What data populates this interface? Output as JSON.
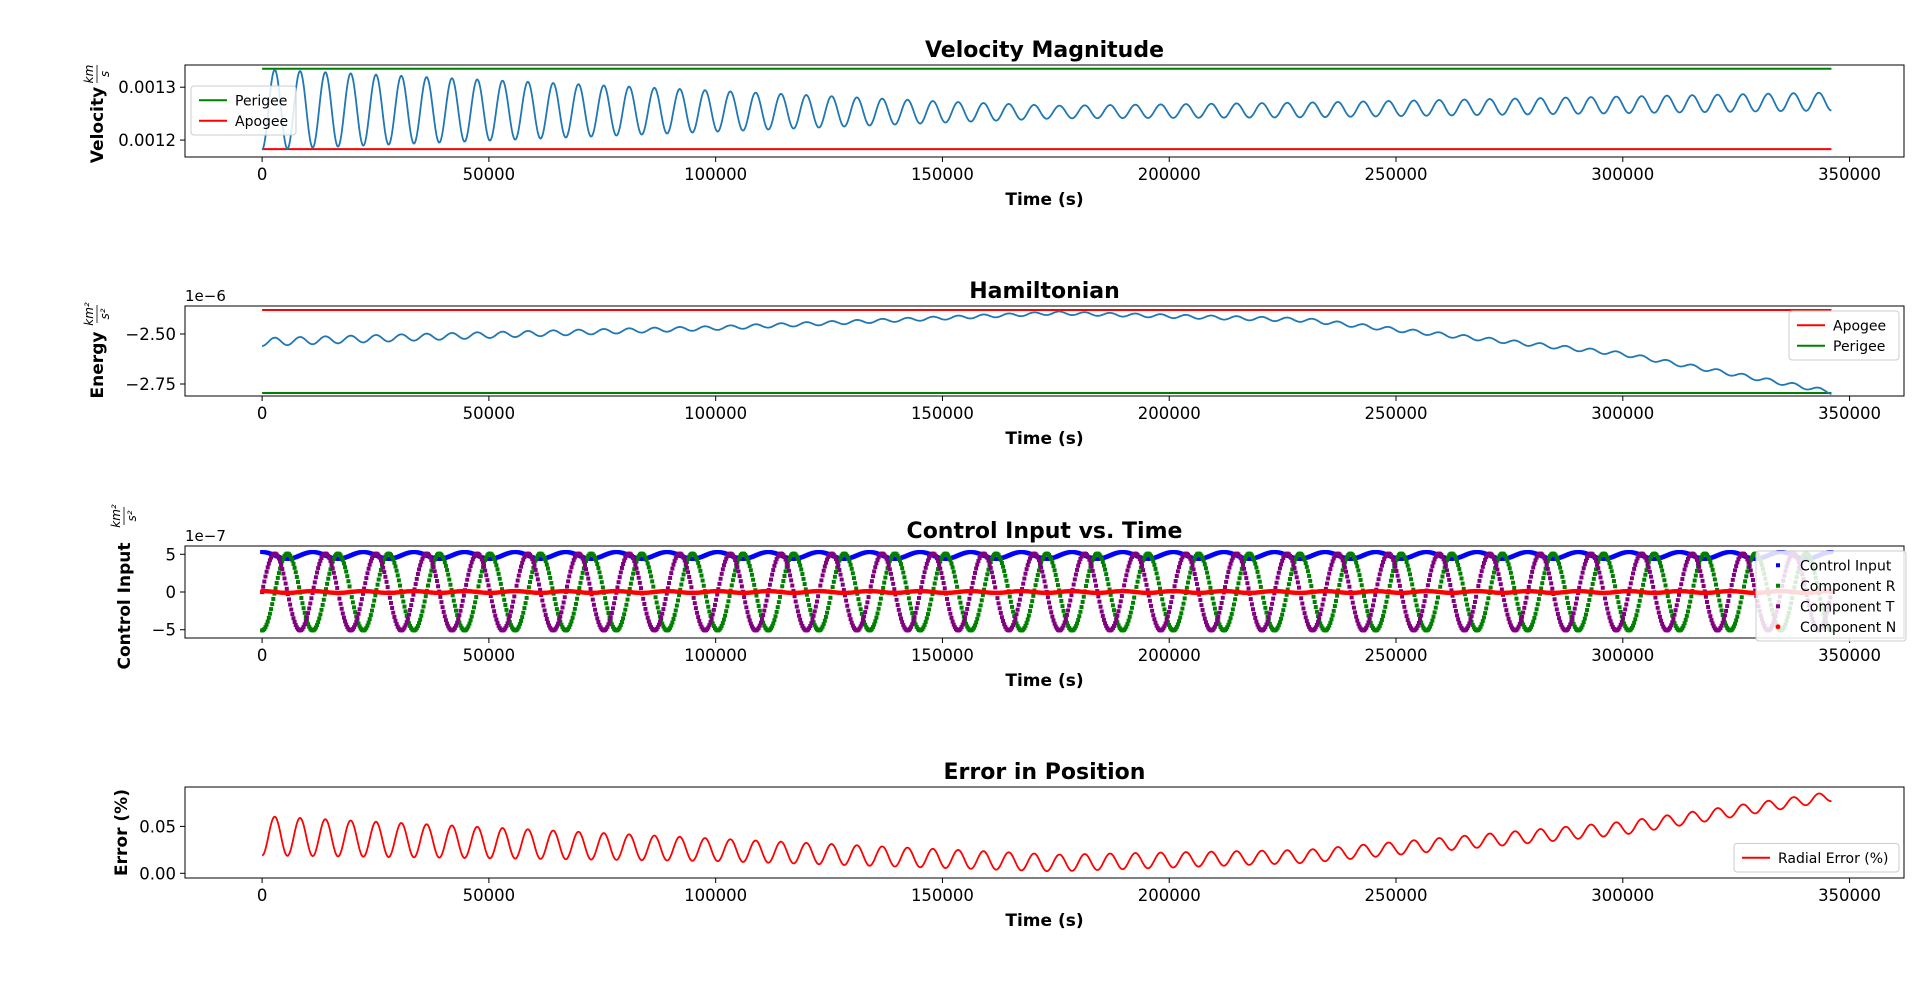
{
  "chart_data": [
    {
      "type": "line",
      "title": "Velocity Magnitude",
      "xlabel": "Time (s)",
      "ylabel": "Velocity",
      "yunit_num": "km",
      "yunit_den": "s",
      "xlim": [
        -17000,
        362000
      ],
      "ylim": [
        0.001168,
        0.001342
      ],
      "x_ticks": [
        0,
        50000,
        100000,
        150000,
        200000,
        250000,
        300000,
        350000
      ],
      "y_ticks": [
        0.0012,
        0.0013
      ],
      "y_tick_labels": [
        "0.0012",
        "0.0013"
      ],
      "y_offset_label": "",
      "legend_position": "upper-left",
      "reference_lines": [
        {
          "name": "Perigee",
          "color": "#008000",
          "y": 0.001335
        },
        {
          "name": "Apogee",
          "color": "#ff0000",
          "y": 0.001183
        }
      ],
      "oscillation": {
        "color": "#1f77b4",
        "x_start": 0,
        "x_end": 346000,
        "cycles": 62,
        "envelope": [
          {
            "x": 0,
            "center": 0.001258,
            "amp": 7.6e-05
          },
          {
            "x": 150000,
            "center": 0.001253,
            "amp": 2e-05
          },
          {
            "x": 175000,
            "center": 0.001253,
            "amp": 1.2e-05
          },
          {
            "x": 230000,
            "center": 0.001257,
            "amp": 1.4e-05
          },
          {
            "x": 346000,
            "center": 0.001273,
            "amp": 1.7e-05
          }
        ]
      },
      "series": [
        {
          "name": "Velocity",
          "color": "#1f77b4",
          "x": [
            0,
            50000,
            100000,
            150000,
            200000,
            250000,
            300000,
            346000
          ],
          "y_min": [
            0.001182,
            0.001195,
            0.00122,
            0.001233,
            0.00124,
            0.001243,
            0.001251,
            0.001256
          ],
          "y_max": [
            0.001334,
            0.00132,
            0.001292,
            0.001273,
            0.001269,
            0.001275,
            0.001287,
            0.00129
          ]
        }
      ]
    },
    {
      "type": "line",
      "title": "Hamiltonian",
      "xlabel": "Time (s)",
      "ylabel": "Energy",
      "yunit_num": "km²",
      "yunit_den": "s²",
      "xlim": [
        -17000,
        362000
      ],
      "ylim": [
        -2.81,
        -2.36
      ],
      "x_ticks": [
        0,
        50000,
        100000,
        150000,
        200000,
        250000,
        300000,
        350000
      ],
      "y_ticks": [
        -2.5,
        -2.75
      ],
      "y_tick_labels": [
        "−2.50",
        "−2.75"
      ],
      "y_offset_label": "1e−6",
      "legend_position": "upper-right",
      "reference_lines": [
        {
          "name": "Apogee",
          "color": "#ff0000",
          "y": -2.38
        },
        {
          "name": "Perigee",
          "color": "#008000",
          "y": -2.795
        }
      ],
      "oscillation": {
        "color": "#1f77b4",
        "x_start": 0,
        "x_end": 346000,
        "cycles": 62,
        "envelope": [
          {
            "x": 0,
            "center": -2.54,
            "amp": 0.02
          },
          {
            "x": 100000,
            "center": -2.47,
            "amp": 0.01
          },
          {
            "x": 175000,
            "center": -2.395,
            "amp": 0.008
          },
          {
            "x": 230000,
            "center": -2.43,
            "amp": 0.01
          },
          {
            "x": 300000,
            "center": -2.6,
            "amp": 0.01
          },
          {
            "x": 346000,
            "center": -2.79,
            "amp": 0.01
          }
        ]
      },
      "series": [
        {
          "name": "Hamiltonian",
          "color": "#1f77b4",
          "x": [
            0,
            50000,
            100000,
            150000,
            175000,
            200000,
            250000,
            300000,
            346000
          ],
          "y": [
            -2.54,
            -2.51,
            -2.47,
            -2.41,
            -2.395,
            -2.4,
            -2.47,
            -2.6,
            -2.79
          ]
        }
      ]
    },
    {
      "type": "scatter",
      "title": "Control Input vs. Time",
      "xlabel": "Time (s)",
      "ylabel": "Control Input",
      "yunit_num": "km²",
      "yunit_den": "s²",
      "xlim": [
        -17000,
        362000
      ],
      "ylim": [
        -6.1,
        6.1
      ],
      "x_ticks": [
        0,
        50000,
        100000,
        150000,
        200000,
        250000,
        300000,
        350000
      ],
      "y_ticks": [
        5,
        0,
        -5
      ],
      "y_tick_labels": [
        "5",
        "0",
        "−5"
      ],
      "y_offset_label": "1e−7",
      "legend_position": "right",
      "series": [
        {
          "name": "Control Input",
          "color": "#0000ff",
          "marker": "square",
          "cycles": 31,
          "x_start": 0,
          "x_end": 346000,
          "center": 4.85,
          "amp": 0.45
        },
        {
          "name": "Component R",
          "color": "#008000",
          "marker": "square",
          "cycles": 31,
          "x_start": 0,
          "x_end": 346000,
          "center": 0,
          "amp": 5.1,
          "phase": 3.14
        },
        {
          "name": "Component T",
          "color": "#800080",
          "marker": "square",
          "cycles": 31,
          "x_start": 0,
          "x_end": 346000,
          "center": 0,
          "amp": 5.1,
          "phase": 4.71
        },
        {
          "name": "Component N",
          "color": "#ff0000",
          "marker": "dot",
          "cycles": 31,
          "x_start": 0,
          "x_end": 346000,
          "center": 0,
          "amp": 0.12,
          "phase": 0
        }
      ]
    },
    {
      "type": "line",
      "title": "Error in Position",
      "xlabel": "Time (s)",
      "ylabel": "Error (%)",
      "xlim": [
        -17000,
        362000
      ],
      "ylim": [
        -0.005,
        0.092
      ],
      "x_ticks": [
        0,
        50000,
        100000,
        150000,
        200000,
        250000,
        300000,
        350000
      ],
      "y_ticks": [
        0.05,
        0.0
      ],
      "y_tick_labels": [
        "0.05",
        "0.00"
      ],
      "y_offset_label": "",
      "legend_position": "lower-right",
      "oscillation": {
        "color": "#ff0000",
        "x_start": 0,
        "x_end": 346000,
        "cycles": 62,
        "envelope": [
          {
            "x": 0,
            "center": 0.04,
            "amp": 0.021
          },
          {
            "x": 100000,
            "center": 0.025,
            "amp": 0.012
          },
          {
            "x": 175000,
            "center": 0.011,
            "amp": 0.009
          },
          {
            "x": 230000,
            "center": 0.018,
            "amp": 0.007
          },
          {
            "x": 300000,
            "center": 0.048,
            "amp": 0.007
          },
          {
            "x": 346000,
            "center": 0.082,
            "amp": 0.005
          }
        ]
      },
      "series": [
        {
          "name": "Radial Error (%)",
          "color": "#ff0000",
          "x": [
            0,
            50000,
            100000,
            150000,
            175000,
            200000,
            250000,
            300000,
            346000
          ],
          "y_min": [
            0.02,
            0.016,
            0.013,
            0.006,
            0.002,
            0.004,
            0.011,
            0.041,
            0.077
          ],
          "y_max": [
            0.061,
            0.055,
            0.037,
            0.024,
            0.02,
            0.022,
            0.028,
            0.055,
            0.087
          ]
        }
      ]
    }
  ]
}
